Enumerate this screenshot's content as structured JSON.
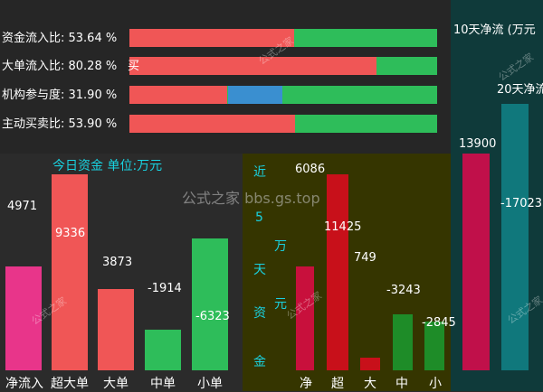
{
  "ratios": [
    {
      "label": "资金流入比: 53.64 %",
      "value": 53.64
    },
    {
      "label": "大单流入比: 80.28 %",
      "value": 80.28,
      "suffix": "买"
    },
    {
      "label": "机构参与度: 31.90 %",
      "value": 31.9
    },
    {
      "label": "主动买卖比: 53.90 %",
      "value": 53.9
    }
  ],
  "today": {
    "title": "今日资金 单位:万元",
    "bars": [
      {
        "label": "净流入",
        "value": "4971",
        "color": "#e8358a"
      },
      {
        "label": "超大单",
        "value": "9336",
        "color": "#f05656"
      },
      {
        "label": "大单",
        "value": "3873",
        "color": "#f05656"
      },
      {
        "label": "中单",
        "value": "-1914",
        "color": "#2ebd5a"
      },
      {
        "label": "小单",
        "value": "-6323",
        "color": "#2ebd5a"
      }
    ]
  },
  "five_day": {
    "title_chars": [
      "近",
      "5",
      "万",
      "天",
      "元",
      "资",
      "金"
    ],
    "bars": [
      {
        "label": "净",
        "value": "6086",
        "color": "#c8103c"
      },
      {
        "label": "超",
        "value": "11425",
        "color": "#c8101a"
      },
      {
        "label": "大",
        "value": "749",
        "color": "#c8101a"
      },
      {
        "label": "中",
        "value": "-3243",
        "color": "#1e8c28"
      },
      {
        "label": "小",
        "value": "-2845",
        "color": "#1e8c28"
      }
    ]
  },
  "ten_day": {
    "title": "10天净流 (万元",
    "subtitle": "20天净流",
    "bars": [
      {
        "value": "13900",
        "color": "#c0104a"
      },
      {
        "value": "-17023",
        "color": "#10787c"
      }
    ]
  },
  "watermark": "公式之家 bbs.gs.top",
  "stamp": "公式之家 www.gszj.com"
}
